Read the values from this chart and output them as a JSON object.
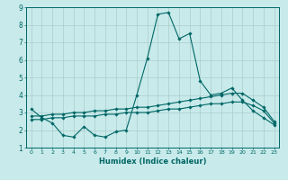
{
  "xlabel": "Humidex (Indice chaleur)",
  "bg_color": "#c8eaea",
  "grid_color": "#aacccc",
  "line_color": "#006666",
  "xlim": [
    -0.5,
    23.5
  ],
  "ylim": [
    1,
    9
  ],
  "xticks": [
    0,
    1,
    2,
    3,
    4,
    5,
    6,
    7,
    8,
    9,
    10,
    11,
    12,
    13,
    14,
    15,
    16,
    17,
    18,
    19,
    20,
    21,
    22,
    23
  ],
  "yticks": [
    1,
    2,
    3,
    4,
    5,
    6,
    7,
    8,
    9
  ],
  "line1_x": [
    0,
    1,
    2,
    3,
    4,
    5,
    6,
    7,
    8,
    9,
    10,
    11,
    12,
    13,
    14,
    15,
    16,
    17,
    18,
    19,
    20,
    21,
    22,
    23
  ],
  "line1_y": [
    3.2,
    2.7,
    2.4,
    1.7,
    1.6,
    2.2,
    1.7,
    1.6,
    1.9,
    2.0,
    4.0,
    6.1,
    8.6,
    8.7,
    7.2,
    7.5,
    4.8,
    4.0,
    4.1,
    4.4,
    3.7,
    3.1,
    2.7,
    2.3
  ],
  "line2_x": [
    0,
    1,
    2,
    3,
    4,
    5,
    6,
    7,
    8,
    9,
    10,
    11,
    12,
    13,
    14,
    15,
    16,
    17,
    18,
    19,
    20,
    21,
    22,
    23
  ],
  "line2_y": [
    2.8,
    2.8,
    2.9,
    2.9,
    3.0,
    3.0,
    3.1,
    3.1,
    3.2,
    3.2,
    3.3,
    3.3,
    3.4,
    3.5,
    3.6,
    3.7,
    3.8,
    3.9,
    4.0,
    4.1,
    4.1,
    3.7,
    3.3,
    2.5
  ],
  "line3_x": [
    0,
    1,
    2,
    3,
    4,
    5,
    6,
    7,
    8,
    9,
    10,
    11,
    12,
    13,
    14,
    15,
    16,
    17,
    18,
    19,
    20,
    21,
    22,
    23
  ],
  "line3_y": [
    2.6,
    2.6,
    2.7,
    2.7,
    2.8,
    2.8,
    2.8,
    2.9,
    2.9,
    3.0,
    3.0,
    3.0,
    3.1,
    3.2,
    3.2,
    3.3,
    3.4,
    3.5,
    3.5,
    3.6,
    3.6,
    3.4,
    3.1,
    2.4
  ]
}
